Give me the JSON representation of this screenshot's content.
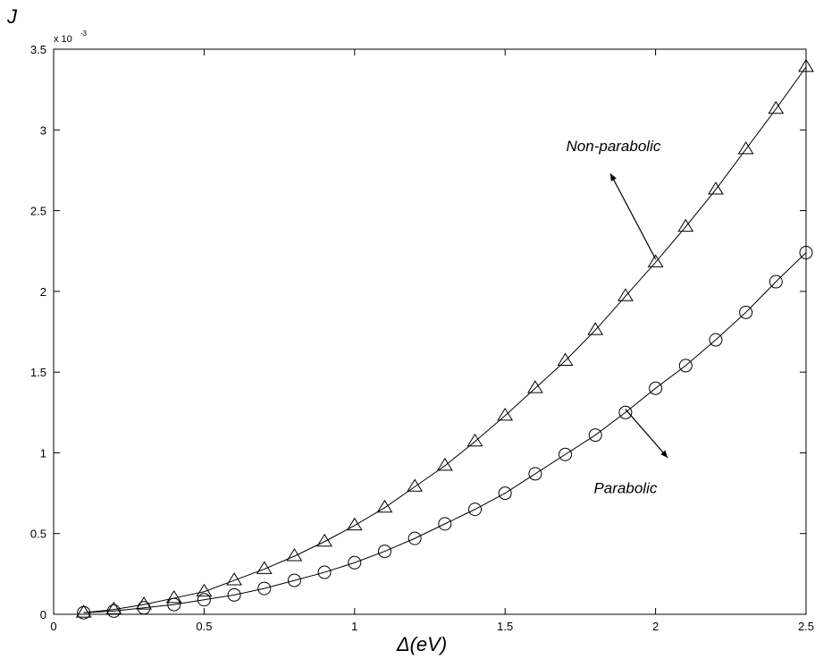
{
  "chart_data": {
    "type": "line",
    "xlabel": "Δ(eV)",
    "ylabel": "J",
    "y_exponent_base": "x 10",
    "y_exponent_power": "-3",
    "xlim": [
      0,
      2.5
    ],
    "ylim": [
      0,
      3.5
    ],
    "y_scale_factor": 0.001,
    "xticks": [
      0,
      0.5,
      1,
      1.5,
      2,
      2.5
    ],
    "xtick_labels": [
      "0",
      "0.5",
      "1",
      "1.5",
      "2",
      "2.5"
    ],
    "yticks": [
      0,
      0.5,
      1,
      1.5,
      2,
      2.5,
      3,
      3.5
    ],
    "ytick_labels": [
      "0",
      "0.5",
      "1",
      "1.5",
      "2",
      "2.5",
      "3",
      "3.5"
    ],
    "grid": false,
    "x": [
      0.1,
      0.2,
      0.3,
      0.4,
      0.5,
      0.6,
      0.7,
      0.8,
      0.9,
      1.0,
      1.1,
      1.2,
      1.3,
      1.4,
      1.5,
      1.6,
      1.7,
      1.8,
      1.9,
      2.0,
      2.1,
      2.2,
      2.3,
      2.4,
      2.5
    ],
    "series": [
      {
        "marker": "triangle",
        "color": "#000000",
        "values": [
          0.01,
          0.03,
          0.06,
          0.1,
          0.14,
          0.21,
          0.28,
          0.36,
          0.45,
          0.55,
          0.66,
          0.79,
          0.92,
          1.07,
          1.23,
          1.4,
          1.57,
          1.76,
          1.97,
          2.18,
          2.4,
          2.63,
          2.88,
          3.13,
          3.39
        ]
      },
      {
        "marker": "circle",
        "color": "#000000",
        "values": [
          0.01,
          0.02,
          0.04,
          0.06,
          0.09,
          0.12,
          0.16,
          0.21,
          0.26,
          0.32,
          0.39,
          0.47,
          0.56,
          0.65,
          0.75,
          0.87,
          0.99,
          1.11,
          1.25,
          1.4,
          1.54,
          1.7,
          1.87,
          2.06,
          2.24
        ]
      }
    ],
    "annotations": [
      {
        "text": "Non-parabolic",
        "text_at": [
          1.86,
          2.87
        ],
        "arrow_from": [
          2.0,
          2.2
        ],
        "arrow_to": [
          1.85,
          2.73
        ]
      },
      {
        "text": "Parabolic",
        "text_at": [
          1.9,
          0.75
        ],
        "arrow_from": [
          1.9,
          1.27
        ],
        "arrow_to": [
          2.04,
          0.97
        ]
      }
    ]
  }
}
